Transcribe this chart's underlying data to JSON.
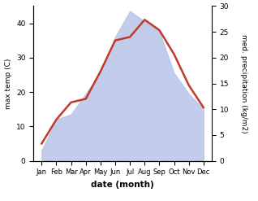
{
  "months": [
    "Jan",
    "Feb",
    "Mar",
    "Apr",
    "May",
    "Jun",
    "Jul",
    "Aug",
    "Sep",
    "Oct",
    "Nov",
    "Dec"
  ],
  "temp": [
    5,
    12,
    17,
    18,
    26,
    35,
    36,
    41,
    38,
    31,
    22,
    15.5
  ],
  "precip": [
    2,
    8,
    9,
    13,
    17,
    24,
    29,
    27,
    25,
    17,
    13,
    10
  ],
  "temp_color": "#c0392b",
  "precip_fill_color": "#b8c4e8",
  "temp_ylim": [
    0,
    45
  ],
  "precip_ylim": [
    0,
    30
  ],
  "temp_yticks": [
    0,
    10,
    20,
    30,
    40
  ],
  "precip_yticks": [
    0,
    5,
    10,
    15,
    20,
    25,
    30
  ],
  "xlabel": "date (month)",
  "ylabel_left": "max temp (C)",
  "ylabel_right": "med. precipitation (kg/m2)"
}
